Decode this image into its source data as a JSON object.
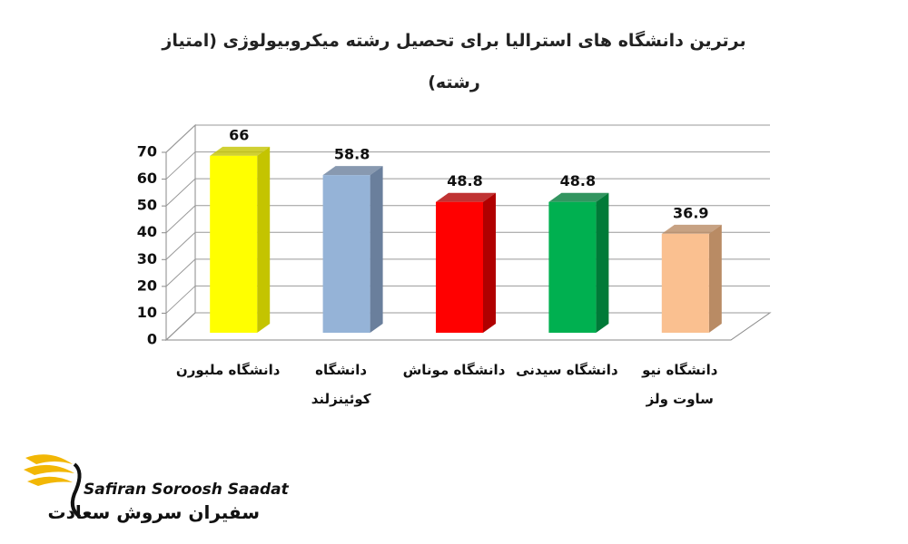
{
  "chart_data": {
    "type": "bar3d",
    "title": "برترین دانشگاه های استرالیا برای تحصیل رشته میکروبیولوژی (امتیاز رشته)",
    "categories": [
      "دانشگاه ملبورن",
      "دانشگاه کوئینزلند",
      "دانشگاه موناش",
      "دانشگاه سیدنی",
      "دانشگاه نیو ساوت ولز"
    ],
    "values": [
      66,
      58.8,
      48.8,
      48.8,
      36.9
    ],
    "colors": [
      "#ffff00",
      "#95b3d7",
      "#ff0000",
      "#00b050",
      "#fac090"
    ],
    "side_colors": [
      "#c4c400",
      "#6a7f9c",
      "#b00000",
      "#007a38",
      "#b98b64"
    ],
    "ylim": [
      0,
      70
    ],
    "yticks": [
      0,
      10,
      20,
      30,
      40,
      50,
      60,
      70
    ],
    "grid": true
  },
  "logo": {
    "name_en": "Safiran Soroosh Saadat",
    "name_fa": "سفیران سروش سعادت"
  }
}
